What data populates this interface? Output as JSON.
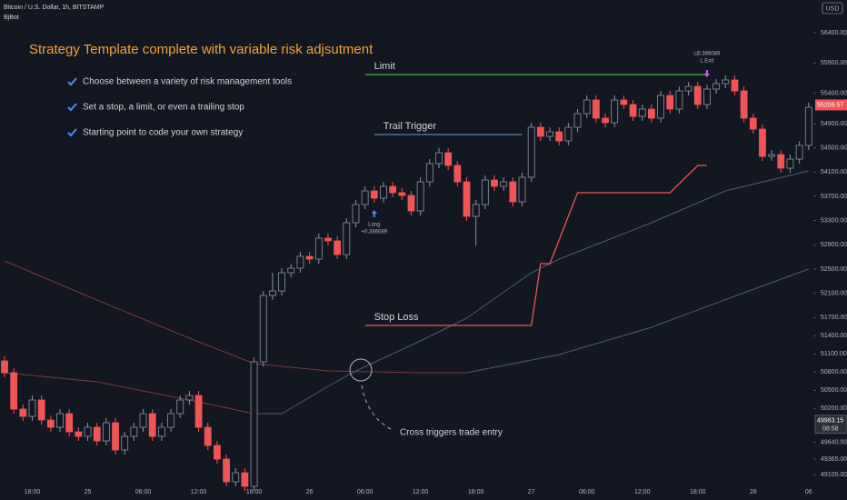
{
  "chart_data": {
    "type": "candlestick",
    "symbol": "Bitcoin / U.S. Dollar, 1h, BITSTAMP",
    "indicator": "BjBot",
    "title": "Strategy Template complete with variable risk adjsutment",
    "bullets": [
      "Choose between a variety of risk management tools",
      "Set a stop, a limit, or even a trailing stop",
      "Starting point to code your own strategy"
    ],
    "annotation": "Cross triggers trade entry",
    "currency": "USD",
    "categories": [
      null,
      null,
      null,
      "18:00",
      null,
      null,
      null,
      null,
      null,
      "25",
      null,
      null,
      null,
      null,
      null,
      "06:00",
      null,
      null,
      null,
      null,
      null,
      "12:00",
      null,
      null,
      null,
      null,
      null,
      "18:00",
      null,
      null,
      null,
      null,
      null,
      "26",
      null,
      null,
      null,
      null,
      null,
      "06:00",
      null,
      null,
      null,
      null,
      null,
      "12:00",
      null,
      null,
      null,
      null,
      null,
      "18:00",
      null,
      null,
      null,
      null,
      null,
      "27",
      null,
      null,
      null,
      null,
      null,
      "06:00",
      null,
      null,
      null,
      null,
      null,
      "12:00",
      null,
      null,
      null,
      null,
      null,
      "18:00",
      null,
      null,
      null,
      null,
      null,
      "28",
      null,
      null,
      null,
      null,
      null,
      "06"
    ],
    "open": [
      50985,
      50790,
      50190,
      50070,
      50340,
      50010,
      49890,
      50115,
      49815,
      49740,
      49890,
      49665,
      49965,
      49515,
      49740,
      49890,
      50115,
      49740,
      49890,
      50115,
      50340,
      50415,
      49890,
      49590,
      49365,
      48990,
      49140,
      48915,
      50970,
      52065,
      52140,
      52440,
      52515,
      52710,
      52665,
      53010,
      52965,
      52740,
      53265,
      53565,
      53790,
      53670,
      53865,
      53760,
      53715,
      53460,
      53940,
      54240,
      54420,
      54210,
      53940,
      53370,
      53565,
      53970,
      53865,
      53940,
      53610,
      54015,
      54840,
      54690,
      54765,
      54615,
      54840,
      55065,
      55290,
      54990,
      54915,
      55290,
      55215,
      55020,
      55140,
      54990,
      55365,
      55140,
      55440,
      55515,
      55215,
      55470,
      55560,
      55620,
      55440,
      54990,
      54810,
      54360,
      54390,
      54165,
      54315,
      54540
    ],
    "high": [
      51060,
      50865,
      50265,
      50415,
      50415,
      50085,
      50190,
      50190,
      49890,
      49965,
      49965,
      50040,
      50040,
      49815,
      49965,
      50190,
      50190,
      49965,
      50190,
      50415,
      50490,
      50490,
      49965,
      49665,
      49440,
      49215,
      49215,
      51045,
      52140,
      52440,
      52515,
      52590,
      52785,
      52785,
      53085,
      53085,
      53040,
      53340,
      53640,
      53865,
      53865,
      53940,
      53940,
      53835,
      53790,
      54015,
      54315,
      54495,
      54495,
      54285,
      54015,
      53640,
      54045,
      54045,
      54015,
      54015,
      54090,
      54915,
      54915,
      54840,
      54840,
      54915,
      55140,
      55365,
      55365,
      55065,
      55365,
      55365,
      55290,
      55215,
      55215,
      55440,
      55440,
      55515,
      55590,
      55590,
      55545,
      55635,
      55695,
      55695,
      55515,
      55065,
      54885,
      54465,
      54465,
      54390,
      54615,
      55245
    ],
    "low": [
      50715,
      50115,
      49995,
      49995,
      49935,
      49815,
      49815,
      49740,
      49665,
      49665,
      49590,
      49590,
      49440,
      49440,
      49665,
      49815,
      49665,
      49665,
      49815,
      50040,
      50265,
      49815,
      49515,
      49290,
      48915,
      48915,
      48840,
      48840,
      50895,
      51990,
      52065,
      52365,
      52440,
      52590,
      52590,
      52890,
      52665,
      52665,
      53190,
      53490,
      53595,
      53595,
      53685,
      53640,
      53385,
      53385,
      53865,
      54165,
      54135,
      53865,
      53295,
      52890,
      53490,
      53790,
      53790,
      53535,
      53535,
      53940,
      54615,
      54615,
      54540,
      54540,
      54765,
      54990,
      54915,
      54840,
      54840,
      55140,
      54945,
      54945,
      54915,
      54915,
      55065,
      55065,
      55365,
      55140,
      55140,
      55395,
      55485,
      55365,
      54915,
      54735,
      54285,
      54285,
      54090,
      54090,
      54240,
      54465
    ],
    "close": [
      50790,
      50190,
      50070,
      50340,
      50010,
      49890,
      50115,
      49815,
      49740,
      49890,
      49665,
      49965,
      49515,
      49740,
      49890,
      50115,
      49740,
      49890,
      50115,
      50340,
      50415,
      49890,
      49590,
      49365,
      48990,
      49140,
      48915,
      50970,
      52065,
      52140,
      52440,
      52515,
      52710,
      52665,
      53010,
      52965,
      52740,
      53265,
      53565,
      53790,
      53670,
      53865,
      53760,
      53715,
      53460,
      53940,
      54240,
      54420,
      54210,
      53940,
      53370,
      53565,
      53970,
      53865,
      53940,
      53610,
      54015,
      54840,
      54690,
      54765,
      54615,
      54840,
      55065,
      55290,
      54990,
      54915,
      55290,
      55215,
      55020,
      55140,
      54990,
      55365,
      55140,
      55440,
      55515,
      55215,
      55470,
      55560,
      55620,
      55440,
      54990,
      54810,
      54360,
      54390,
      54165,
      54315,
      54540,
      55170
    ],
    "up_color": "#131722",
    "up_border": "#8a94a6",
    "down_color": "#f05454",
    "lines": [
      {
        "color": "#7a3b3f",
        "x": [
          0,
          10,
          20,
          27,
          35,
          45,
          50
        ],
        "values": [
          52635,
          51990,
          51360,
          50940,
          50820,
          50790,
          50790
        ]
      },
      {
        "color": "#4a5e78",
        "x": [
          50,
          60,
          70,
          80,
          87
        ],
        "values": [
          50790,
          51090,
          51540,
          52110,
          52500
        ]
      },
      {
        "color": "#7a3b3f",
        "x": [
          0,
          10,
          20,
          27
        ],
        "values": [
          50790,
          50640,
          50340,
          50115
        ]
      },
      {
        "color": "#4a5e78",
        "x": [
          27,
          30,
          35,
          38,
          45,
          50,
          57,
          60,
          70,
          78,
          87
        ],
        "values": [
          50115,
          50115,
          50565,
          50820,
          51315,
          51690,
          52440,
          52665,
          53265,
          53790,
          54120
        ]
      }
    ],
    "levels": [
      {
        "label": "Limit",
        "color": "#4caf50",
        "x": [
          39,
          76
        ],
        "values": [
          55710,
          55710
        ]
      },
      {
        "label": "Trail Trigger",
        "color": "#5b7fa8",
        "x": [
          40,
          56
        ],
        "values": [
          54720,
          54720
        ]
      },
      {
        "label": "Stop Loss",
        "color": "#f05454",
        "x": [
          39,
          57,
          58,
          59,
          62,
          72,
          75,
          76
        ],
        "values": [
          51570,
          51570,
          52590,
          52590,
          53760,
          53760,
          54210,
          54210
        ]
      }
    ],
    "signals": [
      {
        "index": 40,
        "label": "Long",
        "value_label": "+0.386089",
        "color": "#4c8bf5"
      },
      {
        "index": 76,
        "label": "L Exit",
        "value_label": "0.386089",
        "color": "#d05ce3"
      }
    ],
    "last_price": 55208.57,
    "price_line": {
      "value": 49983.15,
      "countdown": "08:58"
    },
    "ylim": [
      48690,
      56940
    ],
    "yticks": [
      {
        "value": 56400,
        "label": "56400.00"
      },
      {
        "value": 55900,
        "label": "55900.00"
      },
      {
        "value": 55400,
        "label": "55400.00"
      },
      {
        "value": 54900,
        "label": "54900.00"
      },
      {
        "value": 54500,
        "label": "54500.00"
      },
      {
        "value": 54100,
        "label": "54100.00"
      },
      {
        "value": 53700,
        "label": "53700.00"
      },
      {
        "value": 53300,
        "label": "53300.00"
      },
      {
        "value": 52900,
        "label": "52900.00"
      },
      {
        "value": 52500,
        "label": "52500.00"
      },
      {
        "value": 52100,
        "label": "52100.00"
      },
      {
        "value": 51700,
        "label": "51700.00"
      },
      {
        "value": 51400,
        "label": "51400.00"
      },
      {
        "value": 51100,
        "label": "51100.00"
      },
      {
        "value": 50800,
        "label": "50800.00"
      },
      {
        "value": 50500,
        "label": "50500.00"
      },
      {
        "value": 50200,
        "label": "50200.00"
      },
      {
        "value": 49640,
        "label": "49640.00"
      },
      {
        "value": 49365,
        "label": "49365.00"
      },
      {
        "value": 49105,
        "label": "49105.00"
      }
    ]
  }
}
